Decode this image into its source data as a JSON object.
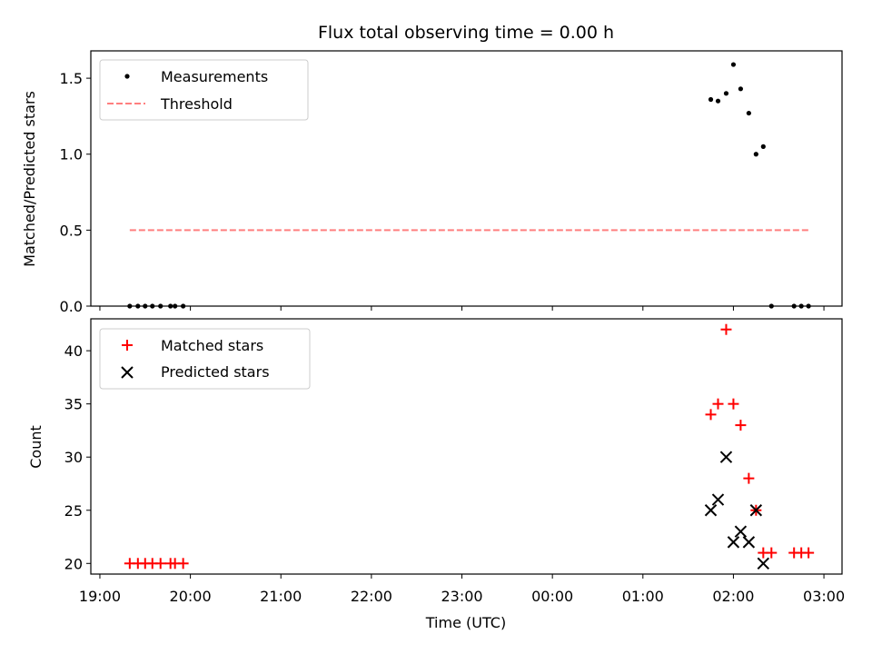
{
  "chart_data": {
    "type": "scatter",
    "title": "Flux total observing time = 0.00 h",
    "xlabel": "Time (UTC)",
    "x_range_hours": [
      18.9,
      27.2
    ],
    "x_ticks": [
      {
        "v": 19,
        "label": "19:00"
      },
      {
        "v": 20,
        "label": "20:00"
      },
      {
        "v": 21,
        "label": "21:00"
      },
      {
        "v": 22,
        "label": "22:00"
      },
      {
        "v": 23,
        "label": "23:00"
      },
      {
        "v": 24,
        "label": "00:00"
      },
      {
        "v": 25,
        "label": "01:00"
      },
      {
        "v": 26,
        "label": "02:00"
      },
      {
        "v": 27,
        "label": "03:00"
      }
    ],
    "top_panel": {
      "ylabel": "Matched/Predicted stars",
      "ylim": [
        0,
        1.68
      ],
      "y_ticks": [
        {
          "v": 0,
          "label": "0.0"
        },
        {
          "v": 0.5,
          "label": "0.5"
        },
        {
          "v": 1.0,
          "label": "1.0"
        },
        {
          "v": 1.5,
          "label": "1.5"
        }
      ],
      "legend_position": "upper left",
      "series": [
        {
          "name": "Measurements",
          "marker": "dot",
          "color": "#000000",
          "points": [
            [
              19.33,
              0
            ],
            [
              19.42,
              0
            ],
            [
              19.5,
              0
            ],
            [
              19.58,
              0
            ],
            [
              19.67,
              0
            ],
            [
              19.78,
              0
            ],
            [
              19.83,
              0
            ],
            [
              19.92,
              0
            ],
            [
              25.75,
              1.36
            ],
            [
              25.83,
              1.35
            ],
            [
              25.92,
              1.4
            ],
            [
              26.0,
              1.59
            ],
            [
              26.08,
              1.43
            ],
            [
              26.17,
              1.27
            ],
            [
              26.25,
              1.0
            ],
            [
              26.33,
              1.05
            ],
            [
              26.42,
              0
            ],
            [
              26.67,
              0
            ],
            [
              26.75,
              0
            ],
            [
              26.83,
              0
            ]
          ]
        },
        {
          "name": "Threshold",
          "style": "dashed",
          "color": "#ff7f7f",
          "points": [
            [
              19.33,
              0.5
            ],
            [
              26.83,
              0.5
            ]
          ]
        }
      ]
    },
    "bottom_panel": {
      "ylabel": "Count",
      "ylim": [
        19,
        43
      ],
      "y_ticks": [
        {
          "v": 20,
          "label": "20"
        },
        {
          "v": 25,
          "label": "25"
        },
        {
          "v": 30,
          "label": "30"
        },
        {
          "v": 35,
          "label": "35"
        },
        {
          "v": 40,
          "label": "40"
        }
      ],
      "legend_position": "upper left",
      "series": [
        {
          "name": "Matched stars",
          "marker": "plus",
          "color": "#ff0000",
          "points": [
            [
              19.33,
              20
            ],
            [
              19.42,
              20
            ],
            [
              19.5,
              20
            ],
            [
              19.58,
              20
            ],
            [
              19.67,
              20
            ],
            [
              19.78,
              20
            ],
            [
              19.83,
              20
            ],
            [
              19.92,
              20
            ],
            [
              25.75,
              34
            ],
            [
              25.83,
              35
            ],
            [
              25.92,
              42
            ],
            [
              26.0,
              35
            ],
            [
              26.08,
              33
            ],
            [
              26.17,
              28
            ],
            [
              26.25,
              25
            ],
            [
              26.33,
              21
            ],
            [
              26.42,
              21
            ],
            [
              26.67,
              21
            ],
            [
              26.75,
              21
            ],
            [
              26.83,
              21
            ]
          ]
        },
        {
          "name": "Predicted stars",
          "marker": "x",
          "color": "#000000",
          "points": [
            [
              25.75,
              25
            ],
            [
              25.83,
              26
            ],
            [
              25.92,
              30
            ],
            [
              26.0,
              22
            ],
            [
              26.08,
              23
            ],
            [
              26.17,
              22
            ],
            [
              26.25,
              25
            ],
            [
              26.33,
              20
            ]
          ]
        }
      ]
    }
  }
}
